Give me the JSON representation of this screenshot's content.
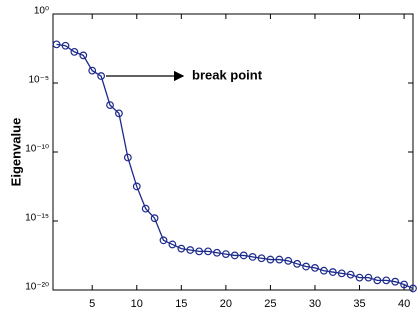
{
  "chart_data": {
    "type": "line",
    "ylabel": "Eigenvalue",
    "annotation": "break point",
    "log_y": true,
    "grid": false,
    "color": "#1c2a8c",
    "x": [
      1,
      2,
      3,
      4,
      5,
      6,
      7,
      8,
      9,
      10,
      11,
      12,
      13,
      14,
      15,
      16,
      17,
      18,
      19,
      20,
      21,
      22,
      23,
      24,
      25,
      26,
      27,
      28,
      29,
      30,
      31,
      32,
      33,
      34,
      35,
      36,
      37,
      38,
      39,
      40,
      41
    ],
    "values": [
      0.0063,
      0.005,
      0.0018,
      0.001,
      7.9e-05,
      3.2e-05,
      2.5e-07,
      6.3e-08,
      4e-11,
      3.2e-13,
      7.9e-15,
      1.6e-15,
      4e-17,
      2e-17,
      1e-17,
      7.9e-18,
      6.3e-18,
      6.3e-18,
      5e-18,
      4e-18,
      3.2e-18,
      3.2e-18,
      2.5e-18,
      2e-18,
      1.6e-18,
      1.6e-18,
      1.3e-18,
      7.9e-19,
      5e-19,
      4e-19,
      2.5e-19,
      2e-19,
      1.6e-19,
      1.3e-19,
      7.9e-20,
      7.9e-20,
      5e-20,
      5e-20,
      4e-20,
      2.5e-20,
      1.3e-20
    ],
    "xlim": [
      0.6,
      41
    ],
    "xticks": [
      5,
      10,
      15,
      20,
      25,
      30,
      35,
      40
    ],
    "ylim": [
      1e-20,
      1
    ],
    "yticks": [
      {
        "value": 1,
        "label": "10⁰"
      },
      {
        "value": 1e-05,
        "label": "10⁻⁵"
      },
      {
        "value": 1e-10,
        "label": "10⁻¹⁰"
      },
      {
        "value": 1e-15,
        "label": "10⁻¹⁵"
      },
      {
        "value": 1e-20,
        "label": "10⁻²⁰"
      }
    ]
  }
}
